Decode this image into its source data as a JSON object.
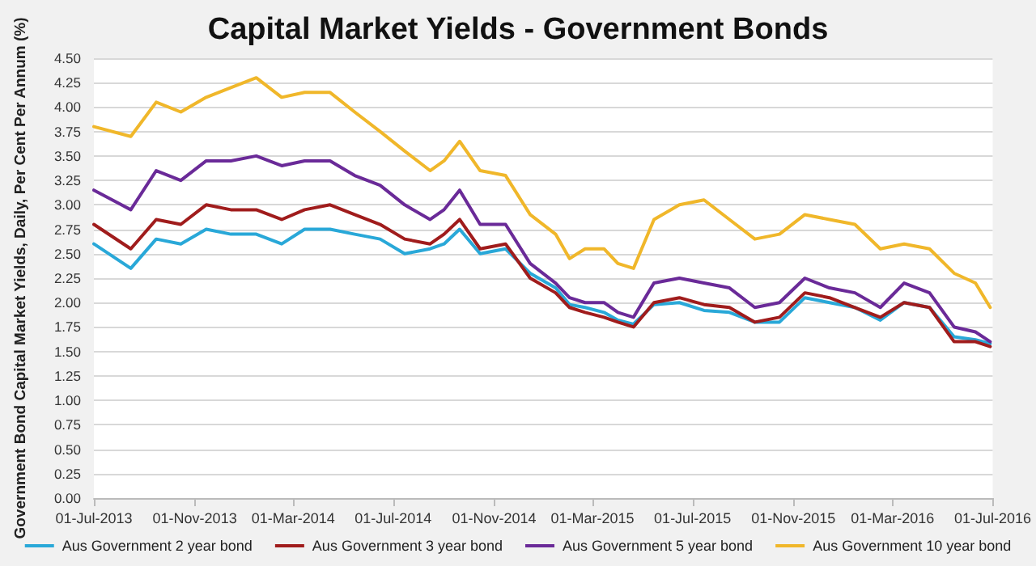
{
  "chart_data": {
    "type": "line",
    "title": "Capital Market Yields - Government Bonds",
    "ylabel": "Government Bond Capital Market Yields, Daily, Per Cent Per Annum (%)",
    "x": [
      "2013-07-01",
      "2013-08-15",
      "2013-09-15",
      "2013-10-15",
      "2013-11-15",
      "2013-12-15",
      "2014-01-15",
      "2014-02-15",
      "2014-03-15",
      "2014-04-15",
      "2014-05-15",
      "2014-06-15",
      "2014-07-15",
      "2014-08-15",
      "2014-09-01",
      "2014-09-20",
      "2014-10-15",
      "2014-11-15",
      "2014-12-15",
      "2015-01-15",
      "2015-02-01",
      "2015-02-20",
      "2015-03-15",
      "2015-04-01",
      "2015-04-20",
      "2015-05-15",
      "2015-06-15",
      "2015-07-15",
      "2015-08-15",
      "2015-09-15",
      "2015-10-15",
      "2015-11-15",
      "2015-12-15",
      "2016-01-15",
      "2016-02-15",
      "2016-03-15",
      "2016-04-15",
      "2016-05-15",
      "2016-06-10",
      "2016-06-28"
    ],
    "series": [
      {
        "name": "Aus Government 2 year bond",
        "color": "#29a8d8",
        "values": [
          2.6,
          2.35,
          2.65,
          2.6,
          2.75,
          2.7,
          2.7,
          2.6,
          2.75,
          2.75,
          2.7,
          2.65,
          2.5,
          2.55,
          2.6,
          2.75,
          2.5,
          2.55,
          2.3,
          2.15,
          1.98,
          1.95,
          1.9,
          1.82,
          1.78,
          1.98,
          2.0,
          1.92,
          1.9,
          1.8,
          1.8,
          2.05,
          2.0,
          1.95,
          1.82,
          2.0,
          1.95,
          1.65,
          1.62,
          1.58
        ]
      },
      {
        "name": "Aus Government 3 year bond",
        "color": "#a01c1c",
        "values": [
          2.8,
          2.55,
          2.85,
          2.8,
          3.0,
          2.95,
          2.95,
          2.85,
          2.95,
          3.0,
          2.9,
          2.8,
          2.65,
          2.6,
          2.7,
          2.85,
          2.55,
          2.6,
          2.25,
          2.1,
          1.95,
          1.9,
          1.85,
          1.8,
          1.75,
          2.0,
          2.05,
          1.98,
          1.95,
          1.8,
          1.85,
          2.1,
          2.05,
          1.95,
          1.85,
          2.0,
          1.95,
          1.6,
          1.6,
          1.55
        ]
      },
      {
        "name": "Aus Government 5 year bond",
        "color": "#6a2a98",
        "values": [
          3.15,
          2.95,
          3.35,
          3.25,
          3.45,
          3.45,
          3.5,
          3.4,
          3.45,
          3.45,
          3.3,
          3.2,
          3.0,
          2.85,
          2.95,
          3.15,
          2.8,
          2.8,
          2.4,
          2.2,
          2.05,
          2.0,
          2.0,
          1.9,
          1.85,
          2.2,
          2.25,
          2.2,
          2.15,
          1.95,
          2.0,
          2.25,
          2.15,
          2.1,
          1.95,
          2.2,
          2.1,
          1.75,
          1.7,
          1.6
        ]
      },
      {
        "name": "Aus Government 10 year bond",
        "color": "#f0b72a",
        "values": [
          3.8,
          3.7,
          4.05,
          3.95,
          4.1,
          4.2,
          4.3,
          4.1,
          4.15,
          4.15,
          3.95,
          3.75,
          3.55,
          3.35,
          3.45,
          3.65,
          3.35,
          3.3,
          2.9,
          2.7,
          2.45,
          2.55,
          2.55,
          2.4,
          2.35,
          2.85,
          3.0,
          3.05,
          2.85,
          2.65,
          2.7,
          2.9,
          2.85,
          2.8,
          2.55,
          2.6,
          2.55,
          2.3,
          2.2,
          1.95
        ]
      }
    ],
    "xlim": [
      "2013-07-01",
      "2016-07-01"
    ],
    "xticks": [
      {
        "value": "2013-07-01",
        "label": "01-Jul-2013"
      },
      {
        "value": "2013-11-01",
        "label": "01-Nov-2013"
      },
      {
        "value": "2014-03-01",
        "label": "01-Mar-2014"
      },
      {
        "value": "2014-07-01",
        "label": "01-Jul-2014"
      },
      {
        "value": "2014-11-01",
        "label": "01-Nov-2014"
      },
      {
        "value": "2015-03-01",
        "label": "01-Mar-2015"
      },
      {
        "value": "2015-07-01",
        "label": "01-Jul-2015"
      },
      {
        "value": "2015-11-01",
        "label": "01-Nov-2015"
      },
      {
        "value": "2016-03-01",
        "label": "01-Mar-2016"
      },
      {
        "value": "2016-07-01",
        "label": "01-Jul-2016"
      }
    ],
    "ylim": [
      0,
      4.5
    ],
    "yticks": [
      {
        "value": 0,
        "label": "0.00"
      },
      {
        "value": 0.25,
        "label": "0.25"
      },
      {
        "value": 0.5,
        "label": "0.50"
      },
      {
        "value": 0.75,
        "label": "0.75"
      },
      {
        "value": 1,
        "label": "1.00"
      },
      {
        "value": 1.25,
        "label": "1.25"
      },
      {
        "value": 1.5,
        "label": "1.50"
      },
      {
        "value": 1.75,
        "label": "1.75"
      },
      {
        "value": 2,
        "label": "2.00"
      },
      {
        "value": 2.25,
        "label": "2.25"
      },
      {
        "value": 2.5,
        "label": "2.50"
      },
      {
        "value": 2.75,
        "label": "2.75"
      },
      {
        "value": 3,
        "label": "3.00"
      },
      {
        "value": 3.25,
        "label": "3.25"
      },
      {
        "value": 3.5,
        "label": "3.50"
      },
      {
        "value": 3.75,
        "label": "3.75"
      },
      {
        "value": 4,
        "label": "4.00"
      },
      {
        "value": 4.25,
        "label": "4.25"
      },
      {
        "value": 4.5,
        "label": "4.50"
      }
    ],
    "grid": "y",
    "legend": "bottom",
    "marker": "none",
    "line_style": "solid"
  }
}
